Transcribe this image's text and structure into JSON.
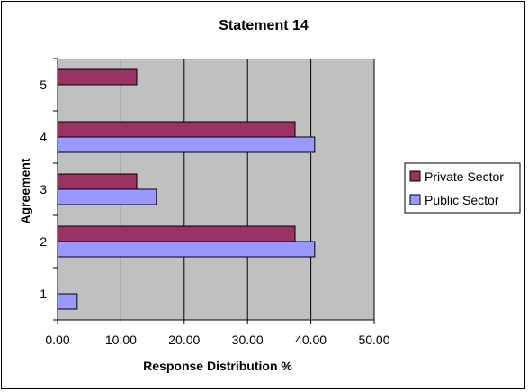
{
  "chart_data": {
    "type": "bar",
    "orientation": "horizontal",
    "title": "Statement 14",
    "xlabel": "Response Distribution %",
    "ylabel": "Agreement",
    "categories": [
      "1",
      "2",
      "3",
      "4",
      "5"
    ],
    "xlim": [
      0,
      50
    ],
    "xticks": [
      "0.00",
      "10.00",
      "20.00",
      "30.00",
      "40.00",
      "50.00"
    ],
    "grid": true,
    "legend_position": "right",
    "series": [
      {
        "name": "Private Sector",
        "color": "#993366",
        "values": [
          0,
          37.5,
          12.5,
          37.5,
          12.5
        ]
      },
      {
        "name": "Public Sector",
        "color": "#9999FF",
        "values": [
          3.1,
          40.6,
          15.6,
          40.6,
          0
        ]
      }
    ],
    "plot_background": "#C0C0C0"
  }
}
